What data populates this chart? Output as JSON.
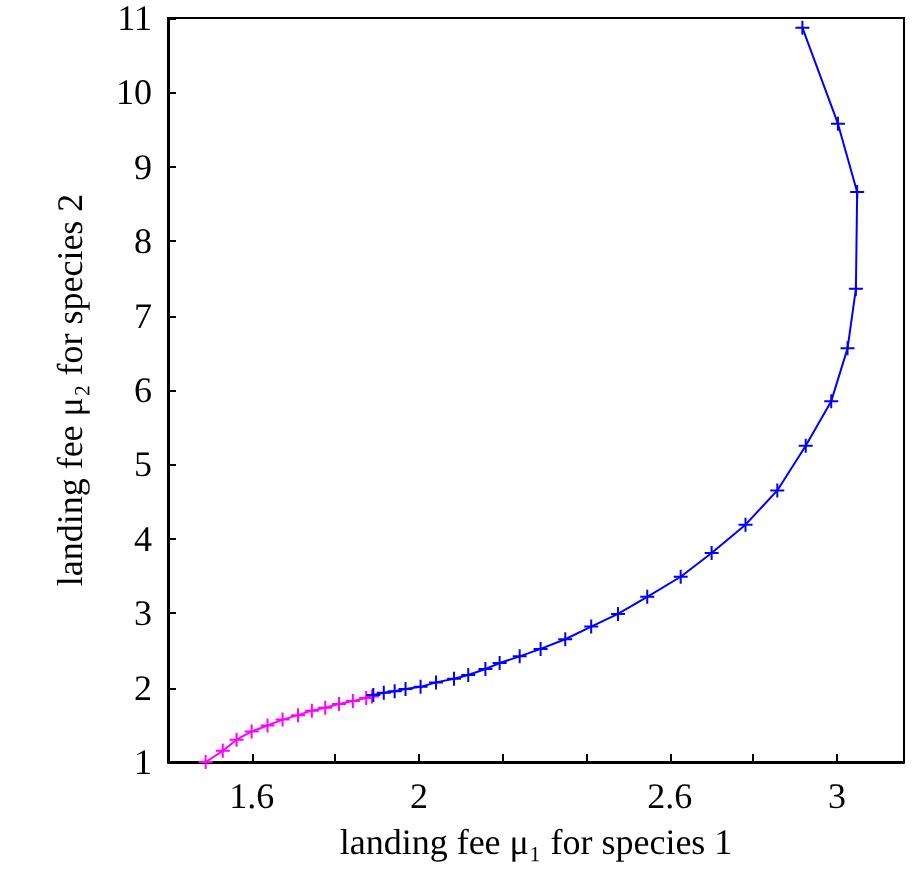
{
  "chart_data": {
    "type": "line",
    "xlabel": "landing fee μ₁ for species 1",
    "ylabel": "landing fee μ₂ for species 2",
    "xlim": [
      1.4,
      3.16
    ],
    "ylim": [
      1,
      11
    ],
    "xticks": [
      1.6,
      {
        "value": 1.8,
        "label": null
      },
      2,
      {
        "value": 2.2,
        "label": null
      },
      {
        "value": 2.4,
        "label": null
      },
      2.6,
      {
        "value": 2.8,
        "label": null
      },
      3
    ],
    "yticks": [
      1,
      2,
      3,
      4,
      5,
      6,
      7,
      8,
      9,
      10,
      11
    ],
    "grid": false,
    "marker": "cross",
    "line_style": "solid",
    "series": [
      {
        "color": "#ff00ff",
        "x": [
          1.49,
          1.531,
          1.564,
          1.6,
          1.638,
          1.674,
          1.711,
          1.744,
          1.776,
          1.809,
          1.842,
          1.874,
          1.888
        ],
        "values": [
          1.0,
          1.15,
          1.3,
          1.41,
          1.49,
          1.57,
          1.63,
          1.69,
          1.73,
          1.78,
          1.82,
          1.86,
          1.88
        ]
      },
      {
        "color": "#0000ff",
        "x": [
          1.891,
          1.916,
          1.942,
          1.968,
          2.004,
          2.041,
          2.084,
          2.118,
          2.159,
          2.193,
          2.241,
          2.291,
          2.35,
          2.412,
          2.476,
          2.546,
          2.626,
          2.7,
          2.781,
          2.857,
          2.925,
          2.986,
          3.025,
          3.045,
          3.048,
          3.002,
          2.917
        ],
        "values": [
          1.9,
          1.93,
          1.95,
          1.98,
          2.01,
          2.07,
          2.12,
          2.17,
          2.25,
          2.33,
          2.42,
          2.52,
          2.65,
          2.82,
          2.99,
          3.22,
          3.49,
          3.81,
          4.19,
          4.65,
          5.25,
          5.85,
          6.56,
          7.36,
          8.66,
          9.58,
          10.87
        ]
      }
    ]
  }
}
